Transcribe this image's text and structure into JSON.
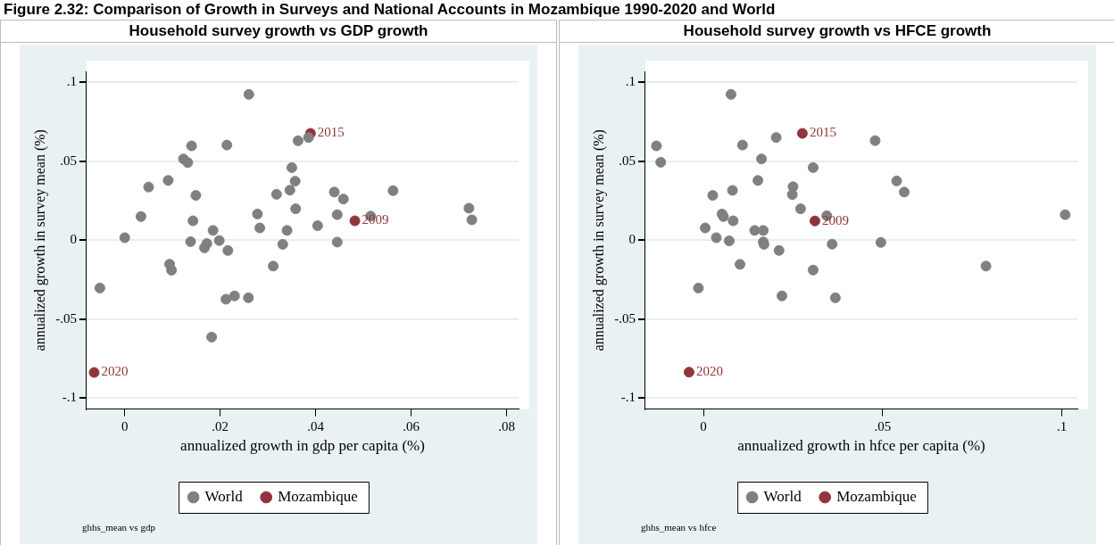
{
  "chart_data": [
    {
      "type": "scatter",
      "title": "Household survey growth vs GDP growth",
      "xlabel": "annualized growth in gdp per capita (%)",
      "ylabel": "annualized growth in survey mean (%)",
      "xlim": [
        -0.008,
        0.0825
      ],
      "ylim": [
        -0.107,
        0.107
      ],
      "xticks": [
        {
          "value": 0,
          "label": "0"
        },
        {
          "value": 0.02,
          "label": ".02"
        },
        {
          "value": 0.04,
          "label": ".04"
        },
        {
          "value": 0.06,
          "label": ".06"
        },
        {
          "value": 0.08,
          "label": ".08"
        }
      ],
      "yticks": [
        {
          "value": -0.1,
          "label": "-.1"
        },
        {
          "value": -0.05,
          "label": "-.05"
        },
        {
          "value": 0,
          "label": "0"
        },
        {
          "value": 0.05,
          "label": ".05"
        },
        {
          "value": 0.1,
          "label": ".1"
        }
      ],
      "grid": "y",
      "legend": "bottom",
      "marker": "circle",
      "series": [
        {
          "name": "World",
          "color": "#808080",
          "x": [
            0.026,
            0.0385,
            0.0363,
            0.014,
            0.0214,
            0.0123,
            0.0132,
            0.035,
            0.0091,
            0.005,
            0.0357,
            0.0149,
            0.0318,
            0.0346,
            0.0439,
            0.0458,
            0.0034,
            0.0143,
            0.0278,
            0.0358,
            0.0445,
            0.0283,
            0.0185,
            0.034,
            0.0404,
            0,
            0.0138,
            0.0198,
            0.0172,
            0.0167,
            0.0216,
            0.0331,
            0.0445,
            0.0094,
            0.0098,
            0.0311,
            -0.0052,
            0.0212,
            0.023,
            0.0259,
            0.0182,
            0.0562,
            0.0721,
            0.0727,
            0.0515
          ],
          "values": [
            0.0924,
            0.0651,
            0.063,
            0.0598,
            0.0603,
            0.0515,
            0.0492,
            0.046,
            0.0379,
            0.0337,
            0.0374,
            0.0284,
            0.0291,
            0.0317,
            0.0305,
            0.0261,
            0.015,
            0.0123,
            0.0166,
            0.0199,
            0.0162,
            0.0078,
            0.0062,
            0.0062,
            0.0092,
            0.0016,
            -0.0009,
            -0.0002,
            -0.0021,
            -0.0048,
            -0.0065,
            -0.0026,
            -0.0012,
            -0.0152,
            -0.019,
            -0.0164,
            -0.0303,
            -0.0374,
            -0.0353,
            -0.0365,
            -0.0614,
            0.0314,
            0.0203,
            0.0129,
            0.0153
          ]
        },
        {
          "name": "Mozambique",
          "color": "#90353b",
          "x": [
            0.0389,
            0.0482,
            -0.0064
          ],
          "values": [
            0.0677,
            0.0123,
            -0.0838
          ]
        }
      ],
      "annotations": [
        "Figure 2.32: Comparison of Growth in Surveys and National Accounts in Mozambique 1990-2020 and World",
        "ghhs_mean vs gdp",
        {
          "text": "2015",
          "x": 0.0389,
          "y": 0.0677
        },
        {
          "text": "2009",
          "x": 0.0482,
          "y": 0.0123
        },
        {
          "text": "2020",
          "x": -0.0064,
          "y": -0.0838
        }
      ]
    },
    {
      "type": "scatter",
      "title": "Household survey growth vs HFCE growth",
      "xlabel": "annualized growth in hfce per capita (%)",
      "ylabel": "annualized growth in survey mean (%)",
      "xlim": [
        -0.0162,
        0.1043
      ],
      "ylim": [
        -0.107,
        0.107
      ],
      "xticks": [
        {
          "value": 0,
          "label": "0"
        },
        {
          "value": 0.05,
          "label": ".05"
        },
        {
          "value": 0.1,
          "label": ".1"
        }
      ],
      "yticks": [
        {
          "value": -0.1,
          "label": "-.1"
        },
        {
          "value": -0.05,
          "label": "-.05"
        },
        {
          "value": 0,
          "label": "0"
        },
        {
          "value": 0.05,
          "label": ".05"
        },
        {
          "value": 0.1,
          "label": ".1"
        }
      ],
      "grid": "y",
      "legend": "bottom",
      "marker": "circle",
      "series": [
        {
          "name": "World",
          "color": "#808080",
          "x": [
            0.0077,
            0.0203,
            -0.0131,
            0.0109,
            -0.0119,
            0.0162,
            0.0306,
            0.0152,
            0.025,
            0.0081,
            0.0026,
            0.0248,
            0.0271,
            0.0052,
            0.0056,
            0.0083,
            0.0344,
            0.0005,
            0.0143,
            0.0167,
            0.0036,
            0.0072,
            0.0167,
            0.0169,
            0.0359,
            0.0495,
            0.0211,
            0.0102,
            0.0306,
            -0.0014,
            0.0219,
            0.0368,
            0.0479,
            0.0539,
            0.056,
            0.1009,
            0.0788
          ],
          "values": [
            0.0924,
            0.0651,
            0.0598,
            0.0603,
            0.0494,
            0.0515,
            0.046,
            0.0379,
            0.0339,
            0.0316,
            0.0284,
            0.0289,
            0.0199,
            0.0166,
            0.015,
            0.0123,
            0.0155,
            0.0078,
            0.0062,
            0.0062,
            0.0016,
            -0.0004,
            -0.0011,
            -0.0026,
            -0.0025,
            -0.0014,
            -0.0065,
            -0.0153,
            -0.0189,
            -0.0303,
            -0.0353,
            -0.0365,
            0.0631,
            0.0376,
            0.0305,
            0.0162,
            -0.0164
          ]
        },
        {
          "name": "Mozambique",
          "color": "#90353b",
          "x": [
            0.0276,
            0.0311,
            -0.004
          ],
          "values": [
            0.0677,
            0.0122,
            -0.0836
          ]
        }
      ],
      "annotations": [
        "ghhs_mean vs hfce",
        {
          "text": "2015",
          "x": 0.0276,
          "y": 0.0677
        },
        {
          "text": "2009",
          "x": 0.0311,
          "y": 0.0122
        },
        {
          "text": "2020",
          "x": -0.004,
          "y": -0.0836
        }
      ]
    }
  ]
}
